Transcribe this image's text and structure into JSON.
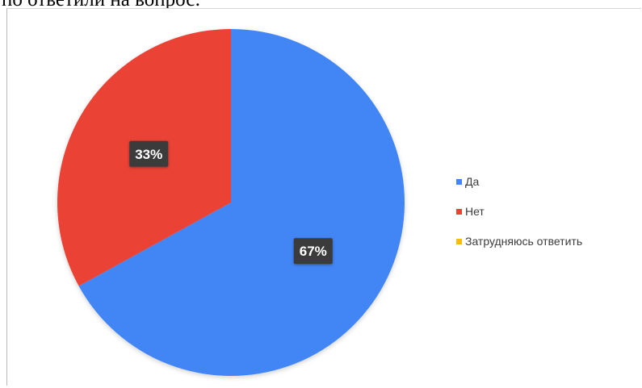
{
  "header": {
    "title_fragment": "по ответили на вопрос:"
  },
  "chart_data": {
    "type": "pie",
    "title": "",
    "legend_position": "right",
    "slices": [
      {
        "label": "Да",
        "value": 67,
        "display": "67%",
        "color": "#4285f4"
      },
      {
        "label": "Нет",
        "value": 33,
        "display": "33%",
        "color": "#ea4335"
      },
      {
        "label": "Затрудняюсь ответить",
        "value": 0,
        "display": "",
        "color": "#fbbc04"
      }
    ]
  }
}
